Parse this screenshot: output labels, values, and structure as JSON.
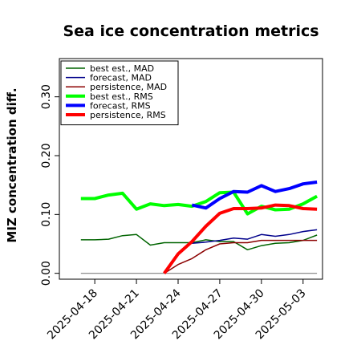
{
  "chart_data": {
    "type": "line",
    "title": "Sea ice concentration metrics",
    "ylabel": "MIZ concentration diff.",
    "xlabel": "",
    "ylim": [
      -0.01,
      0.365
    ],
    "xlim_day_index": [
      -1.55,
      17.4
    ],
    "y_ticks": [
      0.0,
      0.1,
      0.2,
      0.3
    ],
    "y_tick_labels": [
      "0.00",
      "0.10",
      "0.20",
      "0.30"
    ],
    "x_ticks_day_index": [
      1,
      4,
      7,
      10,
      13,
      16
    ],
    "x_tick_labels": [
      "2025-04-18",
      "2025-04-21",
      "2025-04-24",
      "2025-04-27",
      "2025-04-30",
      "2025-05-03"
    ],
    "x_tick_colors": [
      "#000000",
      "#000000",
      "#228b22",
      "#000000",
      "#000000",
      "#000000"
    ],
    "legend_position": "upper-left",
    "series": [
      {
        "name": "best est., MAD",
        "color": "#006400",
        "width": 1.5,
        "points": [
          [
            0,
            0.057
          ],
          [
            1,
            0.057
          ],
          [
            2,
            0.058
          ],
          [
            3,
            0.064
          ],
          [
            4,
            0.066
          ],
          [
            5,
            0.048
          ],
          [
            6,
            0.052
          ],
          [
            7,
            0.052
          ],
          [
            8,
            0.052
          ],
          [
            9,
            0.057
          ],
          [
            10,
            0.054
          ],
          [
            11,
            0.054
          ],
          [
            12,
            0.04
          ],
          [
            13,
            0.047
          ],
          [
            14,
            0.051
          ],
          [
            15,
            0.052
          ],
          [
            16,
            0.056
          ],
          [
            17,
            0.065
          ]
        ]
      },
      {
        "name": "forecast,  MAD",
        "color": "#00008b",
        "width": 1.5,
        "points": [
          [
            8,
            0.051
          ],
          [
            9,
            0.053
          ],
          [
            10,
            0.056
          ],
          [
            11,
            0.06
          ],
          [
            12,
            0.058
          ],
          [
            13,
            0.066
          ],
          [
            14,
            0.063
          ],
          [
            15,
            0.066
          ],
          [
            16,
            0.071
          ],
          [
            17,
            0.074
          ]
        ]
      },
      {
        "name": "persistence, MAD",
        "color": "#8b0000",
        "width": 1.5,
        "points": [
          [
            6,
            0.0
          ],
          [
            7,
            0.015
          ],
          [
            8,
            0.025
          ],
          [
            9,
            0.04
          ],
          [
            10,
            0.05
          ],
          [
            11,
            0.052
          ],
          [
            12,
            0.052
          ],
          [
            13,
            0.056
          ],
          [
            14,
            0.056
          ],
          [
            15,
            0.056
          ],
          [
            16,
            0.056
          ],
          [
            17,
            0.056
          ]
        ]
      },
      {
        "name": "best est., RMS",
        "color": "#00ff00",
        "width": 4,
        "points": [
          [
            0,
            0.127
          ],
          [
            1,
            0.127
          ],
          [
            2,
            0.133
          ],
          [
            3,
            0.136
          ],
          [
            4,
            0.109
          ],
          [
            5,
            0.118
          ],
          [
            6,
            0.115
          ],
          [
            7,
            0.117
          ],
          [
            8,
            0.114
          ],
          [
            9,
            0.122
          ],
          [
            10,
            0.137
          ],
          [
            11,
            0.138
          ],
          [
            12,
            0.101
          ],
          [
            13,
            0.114
          ],
          [
            14,
            0.108
          ],
          [
            15,
            0.109
          ],
          [
            16,
            0.118
          ],
          [
            17,
            0.131
          ]
        ]
      },
      {
        "name": "forecast,  RMS",
        "color": "#0000ff",
        "width": 4,
        "points": [
          [
            8,
            0.116
          ],
          [
            9,
            0.111
          ],
          [
            10,
            0.127
          ],
          [
            11,
            0.139
          ],
          [
            12,
            0.138
          ],
          [
            13,
            0.149
          ],
          [
            14,
            0.139
          ],
          [
            15,
            0.144
          ],
          [
            16,
            0.152
          ],
          [
            17,
            0.155
          ]
        ]
      },
      {
        "name": "persistence, RMS",
        "color": "#ff0000",
        "width": 4,
        "points": [
          [
            6,
            0.0
          ],
          [
            7,
            0.033
          ],
          [
            8,
            0.054
          ],
          [
            9,
            0.08
          ],
          [
            10,
            0.102
          ],
          [
            11,
            0.11
          ],
          [
            12,
            0.11
          ],
          [
            13,
            0.111
          ],
          [
            14,
            0.116
          ],
          [
            15,
            0.115
          ],
          [
            16,
            0.11
          ],
          [
            17,
            0.109
          ]
        ]
      }
    ],
    "reference_line": {
      "y": 0.0,
      "color": "#808080"
    }
  }
}
